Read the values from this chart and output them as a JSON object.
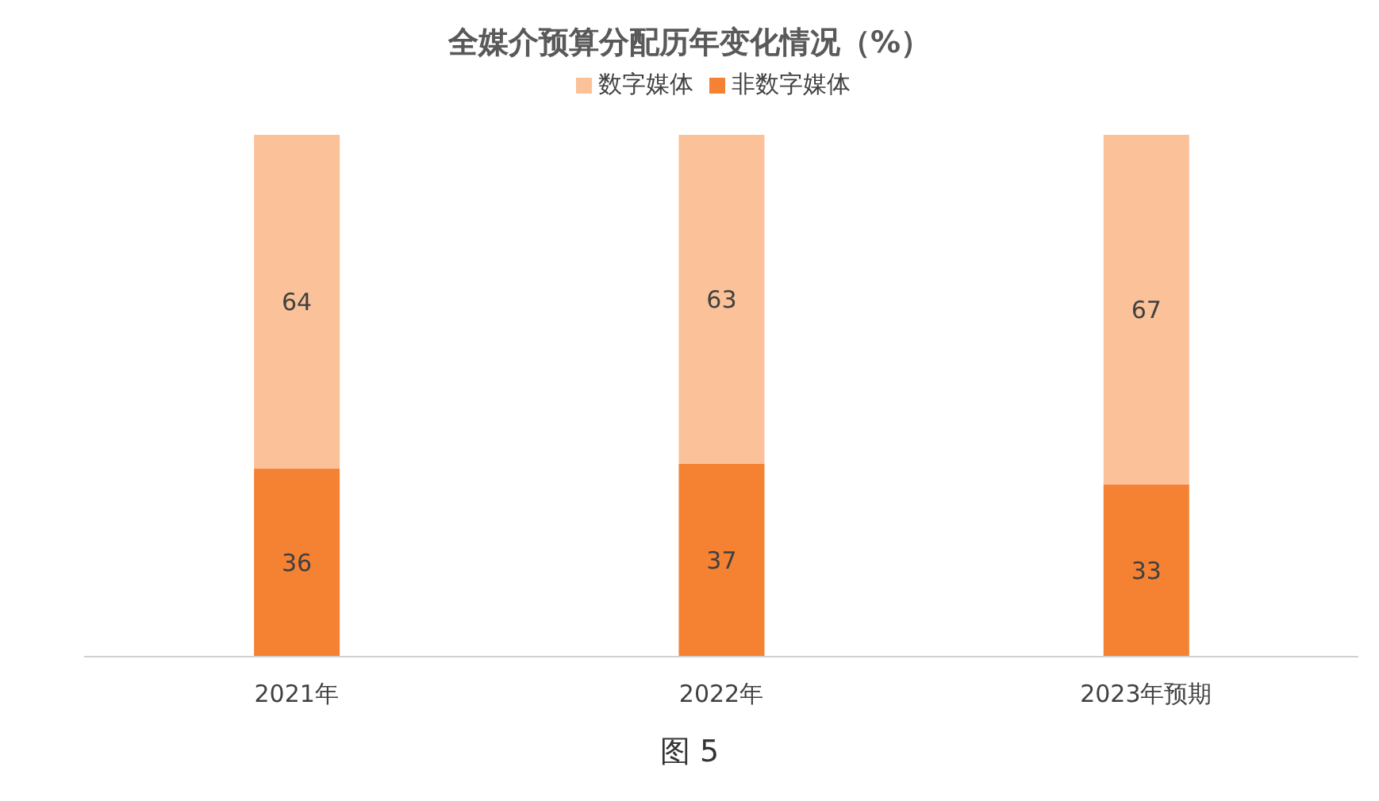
{
  "chart_data": {
    "type": "bar",
    "title": "全媒介预算分配历年变化情况（%）",
    "categories": [
      "2021年",
      "2022年",
      "2023年预期"
    ],
    "stacked": true,
    "data_labels": true,
    "legend": "top",
    "grid": false,
    "series": [
      {
        "name": "非数字媒体",
        "color": "#f58233",
        "values": [
          36,
          37,
          33
        ]
      },
      {
        "name": "数字媒体",
        "color": "#fbc29a",
        "values": [
          64,
          63,
          67
        ]
      }
    ],
    "annotations": [
      "图 5"
    ]
  }
}
